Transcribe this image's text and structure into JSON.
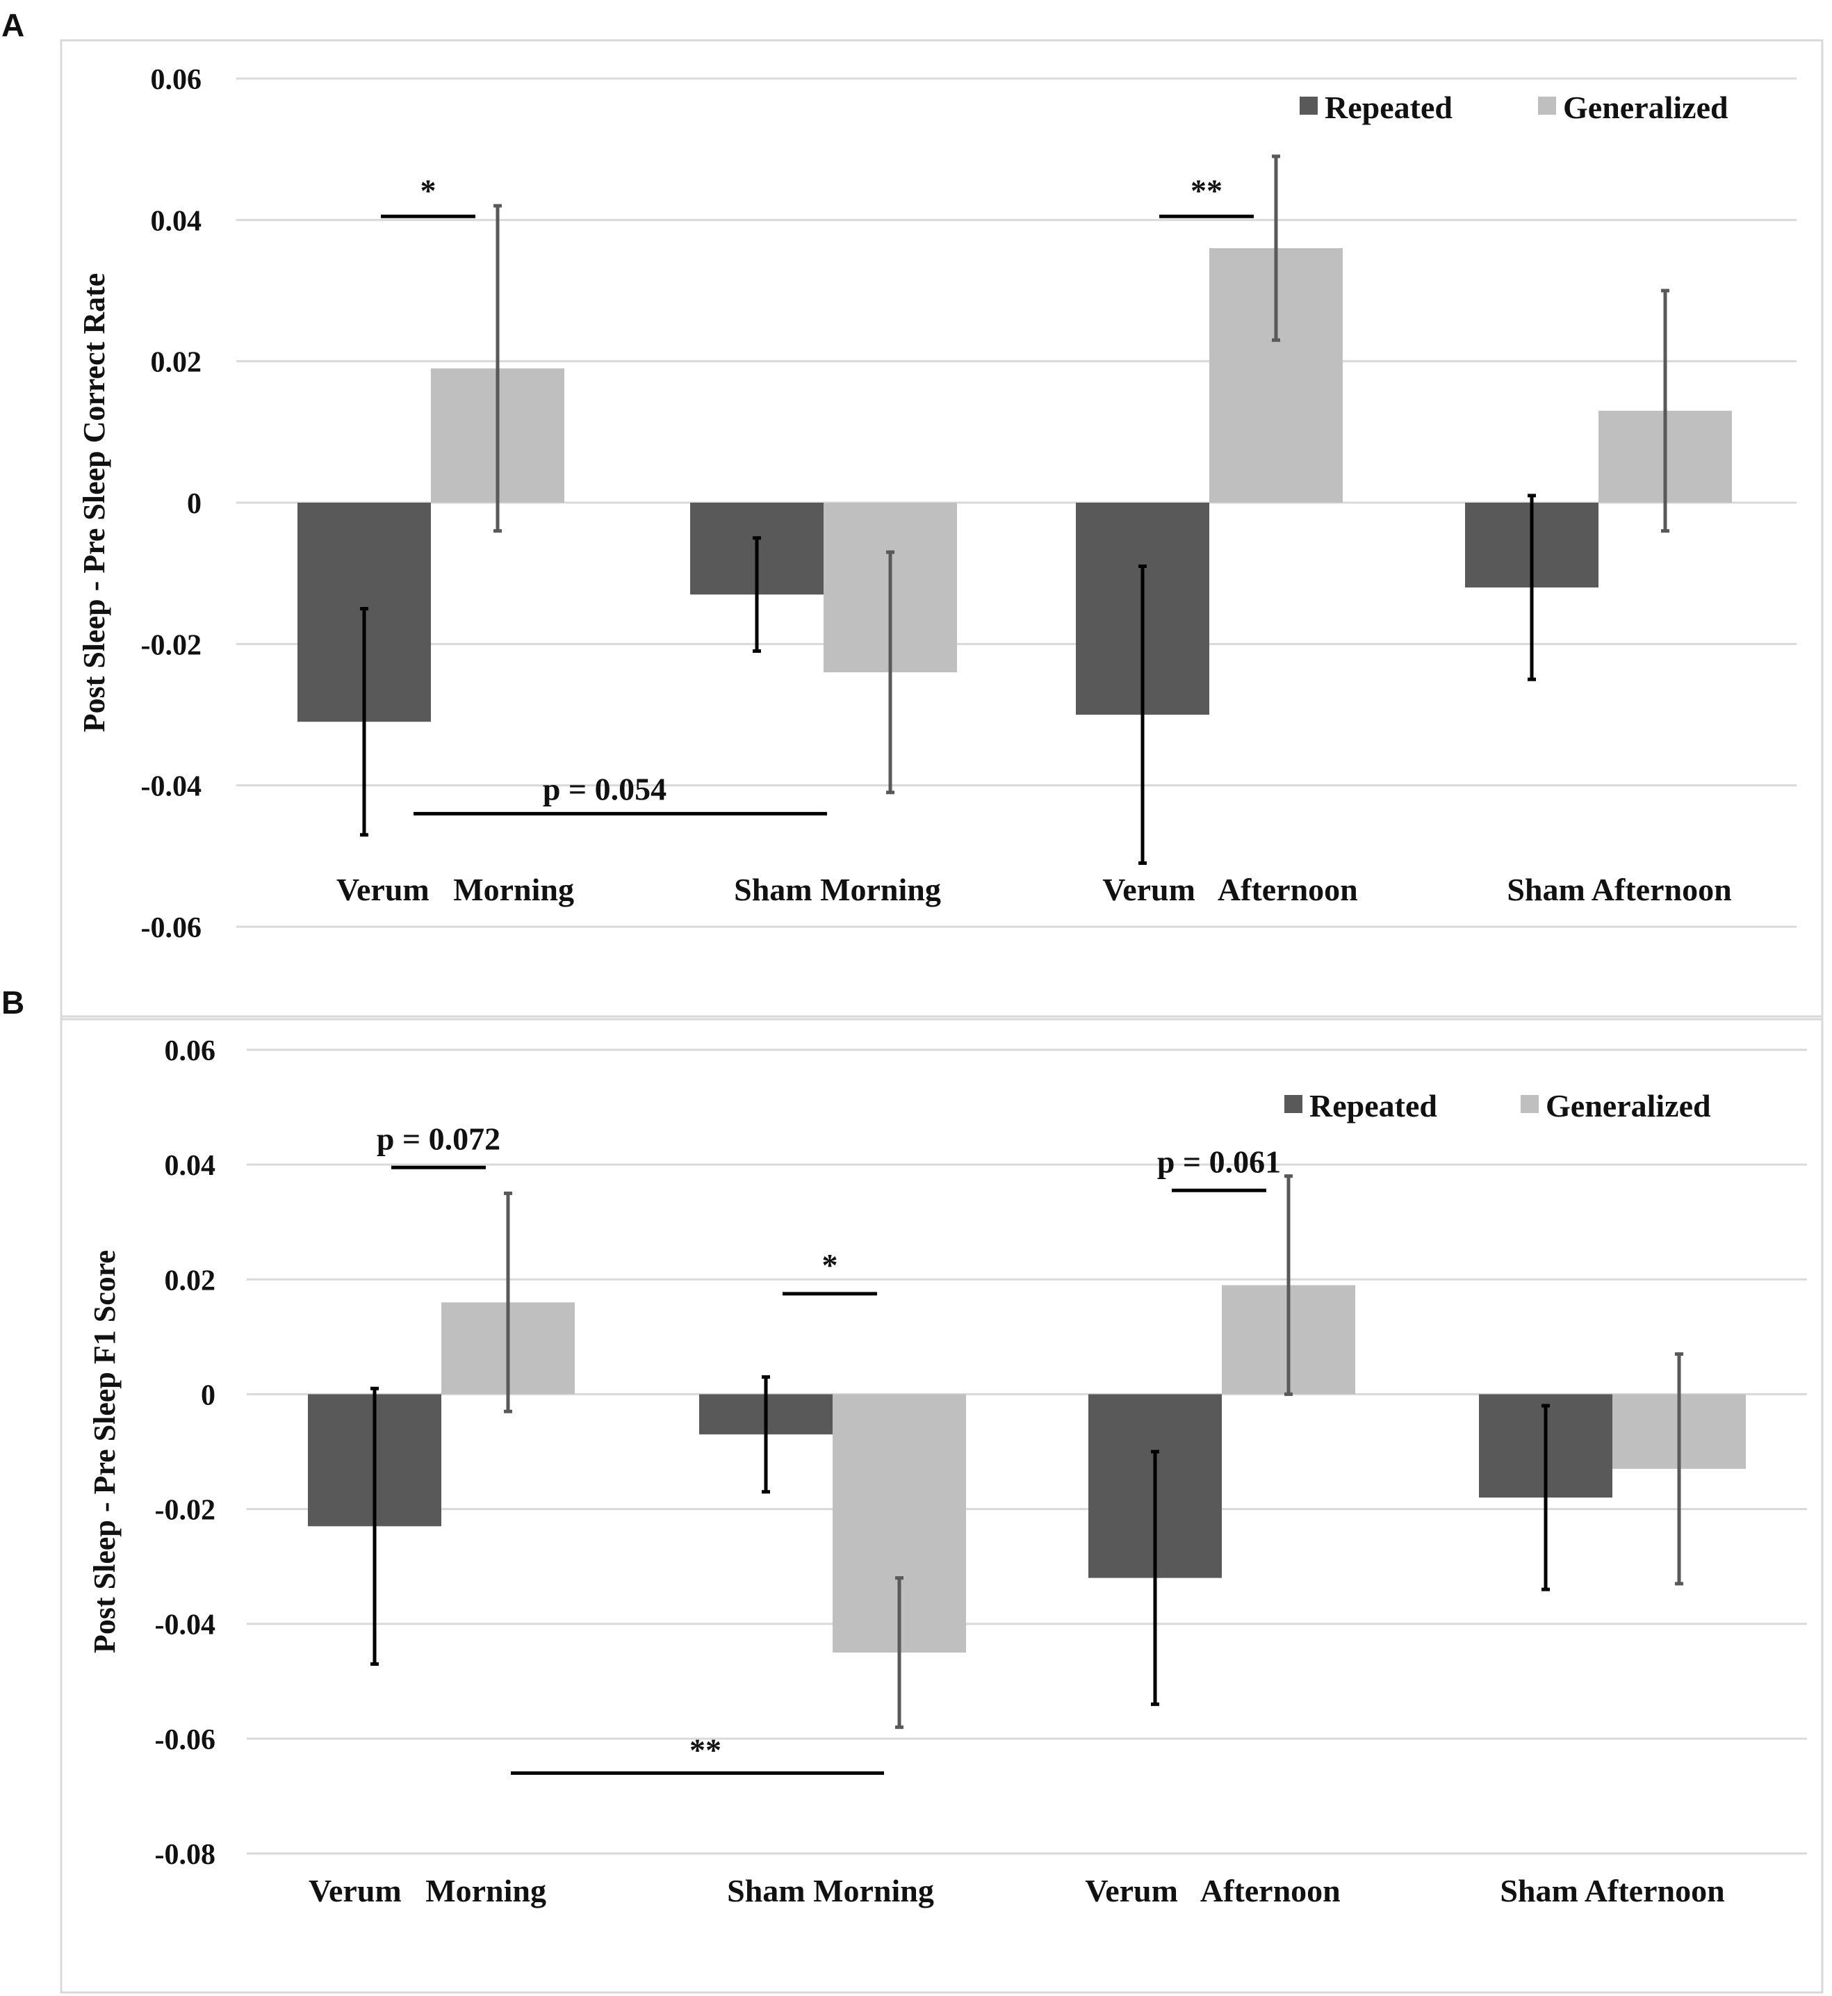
{
  "colors": {
    "repeated": "#595959",
    "generalized": "#bfbfbf",
    "grid": "#d9d9d9",
    "frame": "#d9d9d9",
    "error_repeated": "#000000",
    "error_generalized": "#595959"
  },
  "chart_data": [
    {
      "panel": "A",
      "type": "bar",
      "ylabel": "Post Sleep - Pre Sleep Correct Rate",
      "ylim": [
        -0.06,
        0.06
      ],
      "yticks": [
        0.06,
        0.04,
        0.02,
        0,
        -0.02,
        -0.04,
        -0.06
      ],
      "ytick_labels": [
        "0.06",
        "0.04",
        "0.02",
        "0",
        "-0.02",
        "-0.04",
        "-0.06"
      ],
      "categories": [
        "Verum   Morning",
        "Sham Morning",
        "Verum   Afternoon",
        "Sham Afternoon"
      ],
      "legend": [
        "Repeated",
        "Generalized"
      ],
      "legend_position": "top-right",
      "series": [
        {
          "name": "Repeated",
          "values": [
            -0.031,
            -0.013,
            -0.03,
            -0.012
          ],
          "err_low": [
            -0.047,
            -0.021,
            -0.051,
            -0.025
          ],
          "err_high": [
            -0.015,
            -0.005,
            -0.009,
            0.001
          ]
        },
        {
          "name": "Generalized",
          "values": [
            0.019,
            -0.024,
            0.036,
            0.013
          ],
          "err_low": [
            -0.004,
            -0.041,
            0.023,
            -0.004
          ],
          "err_high": [
            0.042,
            -0.007,
            0.049,
            0.03
          ]
        }
      ],
      "annotations": [
        {
          "label": "*",
          "type": "within",
          "category": 0,
          "y": 0.0405
        },
        {
          "label": "**",
          "type": "within",
          "category": 2,
          "y": 0.0405
        },
        {
          "label": "p = 0.054",
          "type": "between",
          "from_category": 0,
          "to_category": 1,
          "y": -0.044
        }
      ]
    },
    {
      "panel": "B",
      "type": "bar",
      "ylabel": "Post Sleep - Pre Sleep F1 Score",
      "ylim": [
        -0.08,
        0.06
      ],
      "yticks": [
        0.06,
        0.04,
        0.02,
        0,
        -0.02,
        -0.04,
        -0.06,
        -0.08
      ],
      "ytick_labels": [
        "0.06",
        "0.04",
        "0.02",
        "0",
        "-0.02",
        "-0.04",
        "-0.06",
        "-0.08"
      ],
      "categories": [
        "Verum   Morning",
        "Sham Morning",
        "Verum   Afternoon",
        "Sham Afternoon"
      ],
      "legend": [
        "Repeated",
        "Generalized"
      ],
      "legend_position": "top-right",
      "series": [
        {
          "name": "Repeated",
          "values": [
            -0.023,
            -0.007,
            -0.032,
            -0.018
          ],
          "err_low": [
            -0.047,
            -0.017,
            -0.054,
            -0.034
          ],
          "err_high": [
            0.001,
            0.003,
            -0.01,
            -0.002
          ]
        },
        {
          "name": "Generalized",
          "values": [
            0.016,
            -0.045,
            0.019,
            -0.013
          ],
          "err_low": [
            -0.003,
            -0.058,
            0.0,
            -0.033
          ],
          "err_high": [
            0.035,
            -0.032,
            0.038,
            0.007
          ]
        }
      ],
      "annotations": [
        {
          "label": "p = 0.072",
          "type": "within",
          "category": 0,
          "y": 0.0395
        },
        {
          "label": "*",
          "type": "within",
          "category": 1,
          "y": 0.0175
        },
        {
          "label": "p = 0.061",
          "type": "within",
          "category": 2,
          "y": 0.0355
        },
        {
          "label": "**",
          "type": "between",
          "from_category": 0,
          "to_category": 1,
          "y": -0.066
        }
      ]
    }
  ]
}
